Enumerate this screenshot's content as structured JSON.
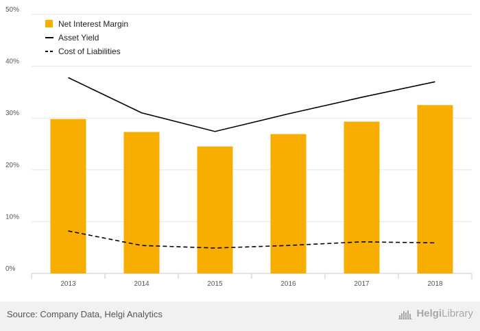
{
  "colors": {
    "bar": "#F7AE00",
    "line": "#000000",
    "grid": "#e6e6e6",
    "axis": "#c8c8c8",
    "tick_text": "#555555",
    "legend_text": "#222222",
    "footer_bg": "#f1f1f1"
  },
  "chart_data": {
    "type": "bar",
    "categories": [
      "2013",
      "2014",
      "2015",
      "2016",
      "2017",
      "2018"
    ],
    "series": [
      {
        "name": "Net Interest Margin",
        "type": "bar",
        "values": [
          29.8,
          27.3,
          24.5,
          26.9,
          29.3,
          32.5
        ]
      },
      {
        "name": "Asset Yield",
        "type": "line",
        "style": "solid",
        "values": [
          37.8,
          31.0,
          27.4,
          30.8,
          34.0,
          37.0
        ]
      },
      {
        "name": "Cost of Liabilities",
        "type": "line",
        "style": "dashed",
        "values": [
          8.2,
          5.4,
          4.9,
          5.4,
          6.1,
          5.9
        ]
      }
    ],
    "ylim": [
      0,
      50
    ],
    "yticks": [
      0,
      10,
      20,
      30,
      40,
      50
    ],
    "ytick_labels": [
      "0%",
      "10%",
      "20%",
      "30%",
      "40%",
      "50%"
    ],
    "grid": true,
    "legend_position": "top-left",
    "title": "",
    "xlabel": "",
    "ylabel": ""
  },
  "footer": {
    "source": "Source: Company Data, Helgi Analytics",
    "brand_prefix": "Helgi",
    "brand_suffix": "Library"
  }
}
